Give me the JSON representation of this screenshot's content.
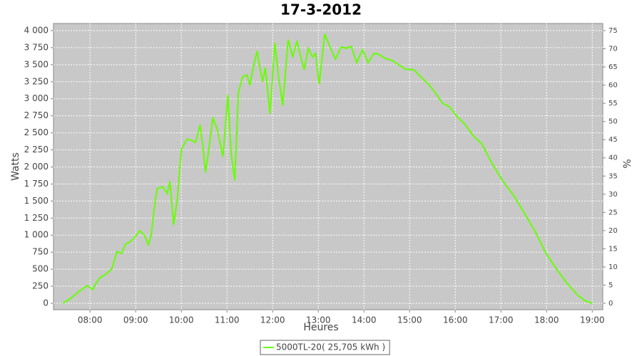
{
  "chart_data": {
    "type": "line",
    "title": "17-3-2012",
    "x_label": "Heures",
    "y_label": "Watts",
    "y2_label": "%",
    "x": [
      7.41,
      7.59,
      7.75,
      7.94,
      8.06,
      8.125,
      8.22,
      8.375,
      8.48,
      8.59,
      8.69,
      8.78,
      8.875,
      8.97,
      9.09,
      9.19,
      9.28,
      9.34,
      9.41,
      9.47,
      9.59,
      9.69,
      9.75,
      9.83,
      9.91,
      10.0,
      10.125,
      10.22,
      10.31,
      10.41,
      10.47,
      10.53,
      10.59,
      10.69,
      10.78,
      10.91,
      11.02,
      11.09,
      11.17,
      11.25,
      11.34,
      11.44,
      11.5,
      11.59,
      11.66,
      11.72,
      11.78,
      11.84,
      11.94,
      12.05,
      12.125,
      12.22,
      12.34,
      12.44,
      12.53,
      12.625,
      12.69,
      12.78,
      12.875,
      12.94,
      13.02,
      13.14,
      13.25,
      13.375,
      13.5,
      13.61,
      13.72,
      13.84,
      13.97,
      14.09,
      14.22,
      14.31,
      14.47,
      14.625,
      14.78,
      14.91,
      15.09,
      15.25,
      15.41,
      15.56,
      15.72,
      15.875,
      16.03,
      16.22,
      16.41,
      16.58,
      16.81,
      17.05,
      17.28,
      17.52,
      17.75,
      17.98,
      18.22,
      18.45,
      18.69,
      18.84,
      19.0
    ],
    "series": [
      {
        "name": "5000TL-20( 25,705 kWh )",
        "color": "#66ff00",
        "values": [
          0,
          80,
          170,
          260,
          200,
          290,
          375,
          440,
          510,
          760,
          730,
          870,
          900,
          960,
          1065,
          1000,
          860,
          1000,
          1420,
          1680,
          1710,
          1610,
          1790,
          1150,
          1520,
          2255,
          2410,
          2390,
          2360,
          2620,
          2310,
          1920,
          2200,
          2715,
          2570,
          2150,
          3060,
          2200,
          1800,
          3090,
          3320,
          3350,
          3195,
          3510,
          3700,
          3455,
          3250,
          3455,
          2780,
          3820,
          3350,
          2900,
          3870,
          3610,
          3850,
          3590,
          3425,
          3740,
          3610,
          3665,
          3215,
          3950,
          3770,
          3580,
          3760,
          3740,
          3770,
          3530,
          3720,
          3530,
          3665,
          3655,
          3590,
          3560,
          3490,
          3435,
          3425,
          3320,
          3215,
          3090,
          2935,
          2880,
          2745,
          2620,
          2445,
          2340,
          2045,
          1785,
          1580,
          1315,
          1055,
          740,
          500,
          290,
          115,
          40,
          0
        ]
      }
    ],
    "xlim": [
      7.2,
      19.23
    ],
    "xticks": [
      {
        "value": 8,
        "label": "08:00"
      },
      {
        "value": 9,
        "label": "09:00"
      },
      {
        "value": 10,
        "label": "10:00"
      },
      {
        "value": 11,
        "label": "11:00"
      },
      {
        "value": 12,
        "label": "12:00"
      },
      {
        "value": 13,
        "label": "13:00"
      },
      {
        "value": 14,
        "label": "14:00"
      },
      {
        "value": 15,
        "label": "15:00"
      },
      {
        "value": 16,
        "label": "16:00"
      },
      {
        "value": 17,
        "label": "17:00"
      },
      {
        "value": 18,
        "label": "18:00"
      },
      {
        "value": 19,
        "label": "19:00"
      }
    ],
    "ylim": [
      -94,
      4104
    ],
    "yticks": [
      0,
      250,
      500,
      750,
      {
        "value": 1000,
        "label": "1 000"
      },
      {
        "value": 1250,
        "label": "1 250"
      },
      {
        "value": 1500,
        "label": "1 500"
      },
      {
        "value": 1750,
        "label": "1 750"
      },
      {
        "value": 2000,
        "label": "2 000"
      },
      {
        "value": 2250,
        "label": "2 250"
      },
      {
        "value": 2500,
        "label": "2 500"
      },
      {
        "value": 2750,
        "label": "2 750"
      },
      {
        "value": 3000,
        "label": "3 000"
      },
      {
        "value": 3250,
        "label": "3 250"
      },
      {
        "value": 3500,
        "label": "3 500"
      },
      {
        "value": 3750,
        "label": "3 750"
      },
      {
        "value": 4000,
        "label": "4 000"
      }
    ],
    "y2lim": [
      -1.76,
      76.95
    ],
    "y2ticks": [
      0,
      5,
      10,
      15,
      20,
      25,
      30,
      35,
      40,
      45,
      50,
      55,
      60,
      65,
      70,
      75
    ],
    "grid": true,
    "legend": "bottom",
    "plot_background": "#c8c8c8"
  }
}
